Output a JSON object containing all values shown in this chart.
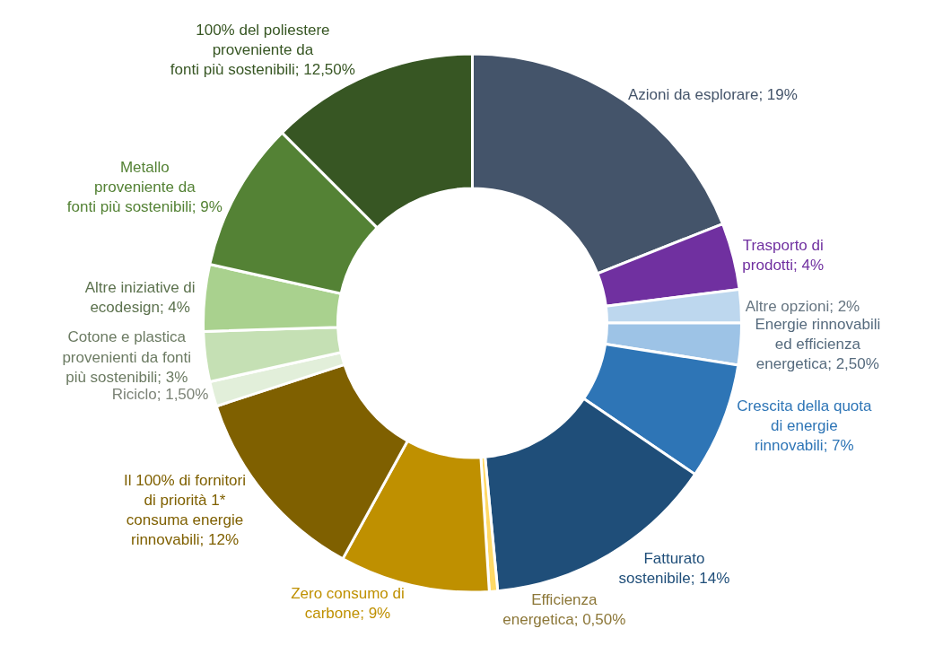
{
  "chart_data": {
    "type": "donut",
    "categories": [
      "Azioni da esplorare",
      "Trasporto di\nprodotti",
      "Altre opzioni",
      "Energie rinnovabili\ned efficienza\nenergetica",
      "Crescita della quota\ndi energie\nrinnovabili",
      "Fatturato\nsostenibile",
      "Efficienza\nenergetica",
      "Zero consumo di\ncarbone",
      "Il 100% di fornitori\ndi priorità 1*\nconsuma energie\nrinnovabili",
      "Riciclo",
      "Cotone e plastica\nprovenienti da fonti\npiù sostenibili",
      "Altre iniziative di\necodesign",
      "Metallo\nproveniente da\nfonti più sostenibili",
      "100% del poliestere\nproveniente da\nfonti più sostenibili"
    ],
    "values": [
      19,
      4,
      2,
      2.5,
      7,
      14,
      0.5,
      9,
      12,
      1.5,
      3,
      4,
      9,
      12.5
    ],
    "value_labels": [
      "19%",
      "4%",
      "2%",
      "2,50%",
      "7%",
      "14%",
      "0,50%",
      "9%",
      "12%",
      "1,50%",
      "3%",
      "4%",
      "9%",
      "12,50%"
    ],
    "colors": [
      "#44546a",
      "#7030a0",
      "#bdd7ee",
      "#9dc3e6",
      "#2e75b6",
      "#1f4e79",
      "#ffd966",
      "#bf9000",
      "#7f6000",
      "#e2efda",
      "#c5e0b4",
      "#a9d18e",
      "#548235",
      "#375623"
    ],
    "legend": false
  }
}
